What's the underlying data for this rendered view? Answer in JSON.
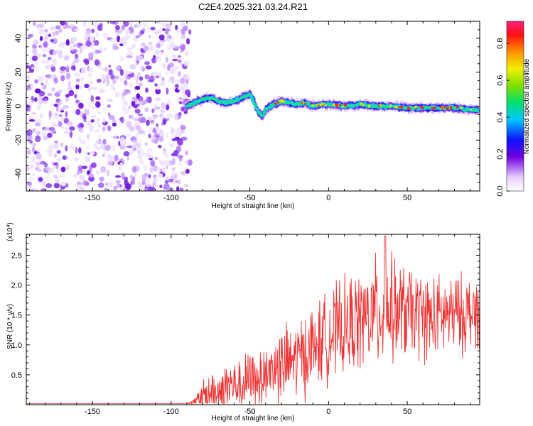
{
  "title": "C2E4.2025.321.03.24.R21",
  "chart_data": [
    {
      "type": "heatmap",
      "xlabel": "Height of straight line (km)",
      "ylabel": "Frequency (Hz)",
      "xlim": [
        -192,
        96
      ],
      "ylim": [
        -50,
        50
      ],
      "xticks": [
        -150,
        -100,
        -50,
        0,
        50
      ],
      "xtick_labels": [
        "-150",
        "-100",
        "-50",
        "0",
        "50"
      ],
      "yticks": [
        -40,
        -20,
        0,
        20,
        40
      ],
      "ytick_labels": [
        "-40",
        "-20",
        "0",
        "20",
        "40"
      ],
      "noise_region_x": [
        -192,
        -88
      ],
      "signal_track": {
        "x": [
          -90,
          -85,
          -80,
          -75,
          -70,
          -65,
          -60,
          -55,
          -50,
          -48,
          -45,
          -42,
          -40,
          -35,
          -30,
          -25,
          -20,
          -15,
          -10,
          -5,
          0,
          10,
          20,
          30,
          40,
          50,
          60,
          70,
          80,
          90,
          95
        ],
        "freq": [
          0,
          2,
          4,
          5,
          3,
          2,
          3,
          5,
          7,
          4,
          -3,
          -6,
          -2,
          1,
          3,
          2,
          1,
          2,
          0,
          1,
          1,
          0,
          1,
          0,
          0,
          -1,
          -1,
          -1,
          -1,
          -2,
          -2
        ]
      },
      "colorbar": {
        "label": "Normalized spectral amplitude",
        "ticks": [
          0.0,
          0.2,
          0.4,
          0.6,
          0.8
        ],
        "tick_labels": [
          "0.0",
          "0.2",
          "0.4",
          "0.6",
          "0.8"
        ],
        "range": [
          0,
          0.92
        ]
      }
    },
    {
      "type": "line",
      "xlabel": "Height of straight line (km)",
      "ylabel": "SNR (10 * v/v)",
      "scale_label": "(x10",
      "scale_exponent": "4",
      "scale_label_end": ")",
      "xlim": [
        -192,
        96
      ],
      "ylim": [
        0,
        2.85
      ],
      "xticks": [
        -150,
        -100,
        -50,
        0,
        50
      ],
      "xtick_labels": [
        "-150",
        "-100",
        "-50",
        "0",
        "50"
      ],
      "yticks": [
        0.5,
        1.0,
        1.5,
        2.0,
        2.5
      ],
      "ytick_labels": [
        "0.5",
        "1.0",
        "1.5",
        "2.0",
        "2.5"
      ],
      "series": [
        {
          "name": "SNR",
          "color": "#ee3333",
          "envelope_x": [
            -192,
            -90,
            -85,
            -80,
            -75,
            -70,
            -65,
            -60,
            -55,
            -50,
            -45,
            -40,
            -35,
            -30,
            -25,
            -20,
            -15,
            -10,
            -5,
            0,
            5,
            10,
            15,
            20,
            25,
            30,
            35,
            40,
            45,
            50,
            55,
            60,
            65,
            70,
            75,
            80,
            85,
            90,
            96
          ],
          "envelope_mean": [
            0.02,
            0.02,
            0.05,
            0.12,
            0.2,
            0.25,
            0.3,
            0.32,
            0.35,
            0.4,
            0.45,
            0.55,
            0.6,
            0.65,
            0.7,
            0.78,
            0.85,
            0.95,
            1.05,
            1.15,
            1.22,
            1.28,
            1.35,
            1.4,
            1.45,
            1.55,
            1.55,
            1.6,
            1.55,
            1.55,
            1.5,
            1.5,
            1.45,
            1.45,
            1.5,
            1.5,
            1.5,
            1.55,
            1.55
          ],
          "envelope_spread": [
            0.0,
            0.0,
            0.08,
            0.35,
            0.45,
            0.5,
            0.55,
            0.45,
            0.5,
            0.6,
            0.6,
            0.65,
            0.7,
            0.75,
            0.8,
            0.8,
            0.85,
            0.85,
            0.85,
            0.9,
            0.95,
            0.95,
            1.0,
            1.0,
            1.05,
            1.1,
            1.1,
            1.05,
            1.0,
            0.95,
            0.9,
            0.9,
            0.85,
            0.85,
            0.8,
            0.8,
            0.8,
            0.75,
            0.7
          ],
          "peak_x": 36,
          "peak_value": 2.82
        }
      ]
    }
  ]
}
